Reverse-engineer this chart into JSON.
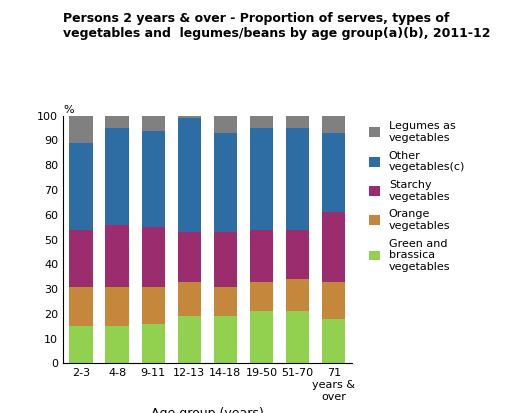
{
  "categories": [
    "2-3",
    "4-8",
    "9-11",
    "12-13",
    "14-18",
    "19-50",
    "51-70",
    "71\nyears &\nover"
  ],
  "green_brassica": [
    15,
    15,
    16,
    19,
    19,
    21,
    21,
    18
  ],
  "orange": [
    16,
    16,
    15,
    14,
    12,
    12,
    13,
    15
  ],
  "starchy": [
    23,
    25,
    24,
    20,
    22,
    21,
    20,
    28
  ],
  "other": [
    35,
    39,
    39,
    46,
    40,
    41,
    41,
    32
  ],
  "legumes": [
    11,
    5,
    6,
    1,
    7,
    5,
    5,
    7
  ],
  "colors": {
    "green_brassica": "#92d050",
    "orange": "#c4873b",
    "starchy": "#9b2d6f",
    "other": "#2e6da4",
    "legumes": "#808080"
  },
  "title": "Persons 2 years & over - Proportion of serves, types of\nvegetables and  legumes/beans by age group(a)(b), 2011-12",
  "percent_label": "%",
  "xlabel": "Age group (years)",
  "ylim": [
    0,
    100
  ],
  "yticks": [
    0,
    10,
    20,
    30,
    40,
    50,
    60,
    70,
    80,
    90,
    100
  ],
  "legend_labels": [
    "Legumes as\nvegetables",
    "Other\nvegetables(c)",
    "Starchy\nvegetables",
    "Orange\nvegetables",
    "Green and\nbrassica\nvegetables"
  ],
  "title_fontsize": 9,
  "tick_fontsize": 8,
  "xlabel_fontsize": 9,
  "bar_width": 0.65
}
